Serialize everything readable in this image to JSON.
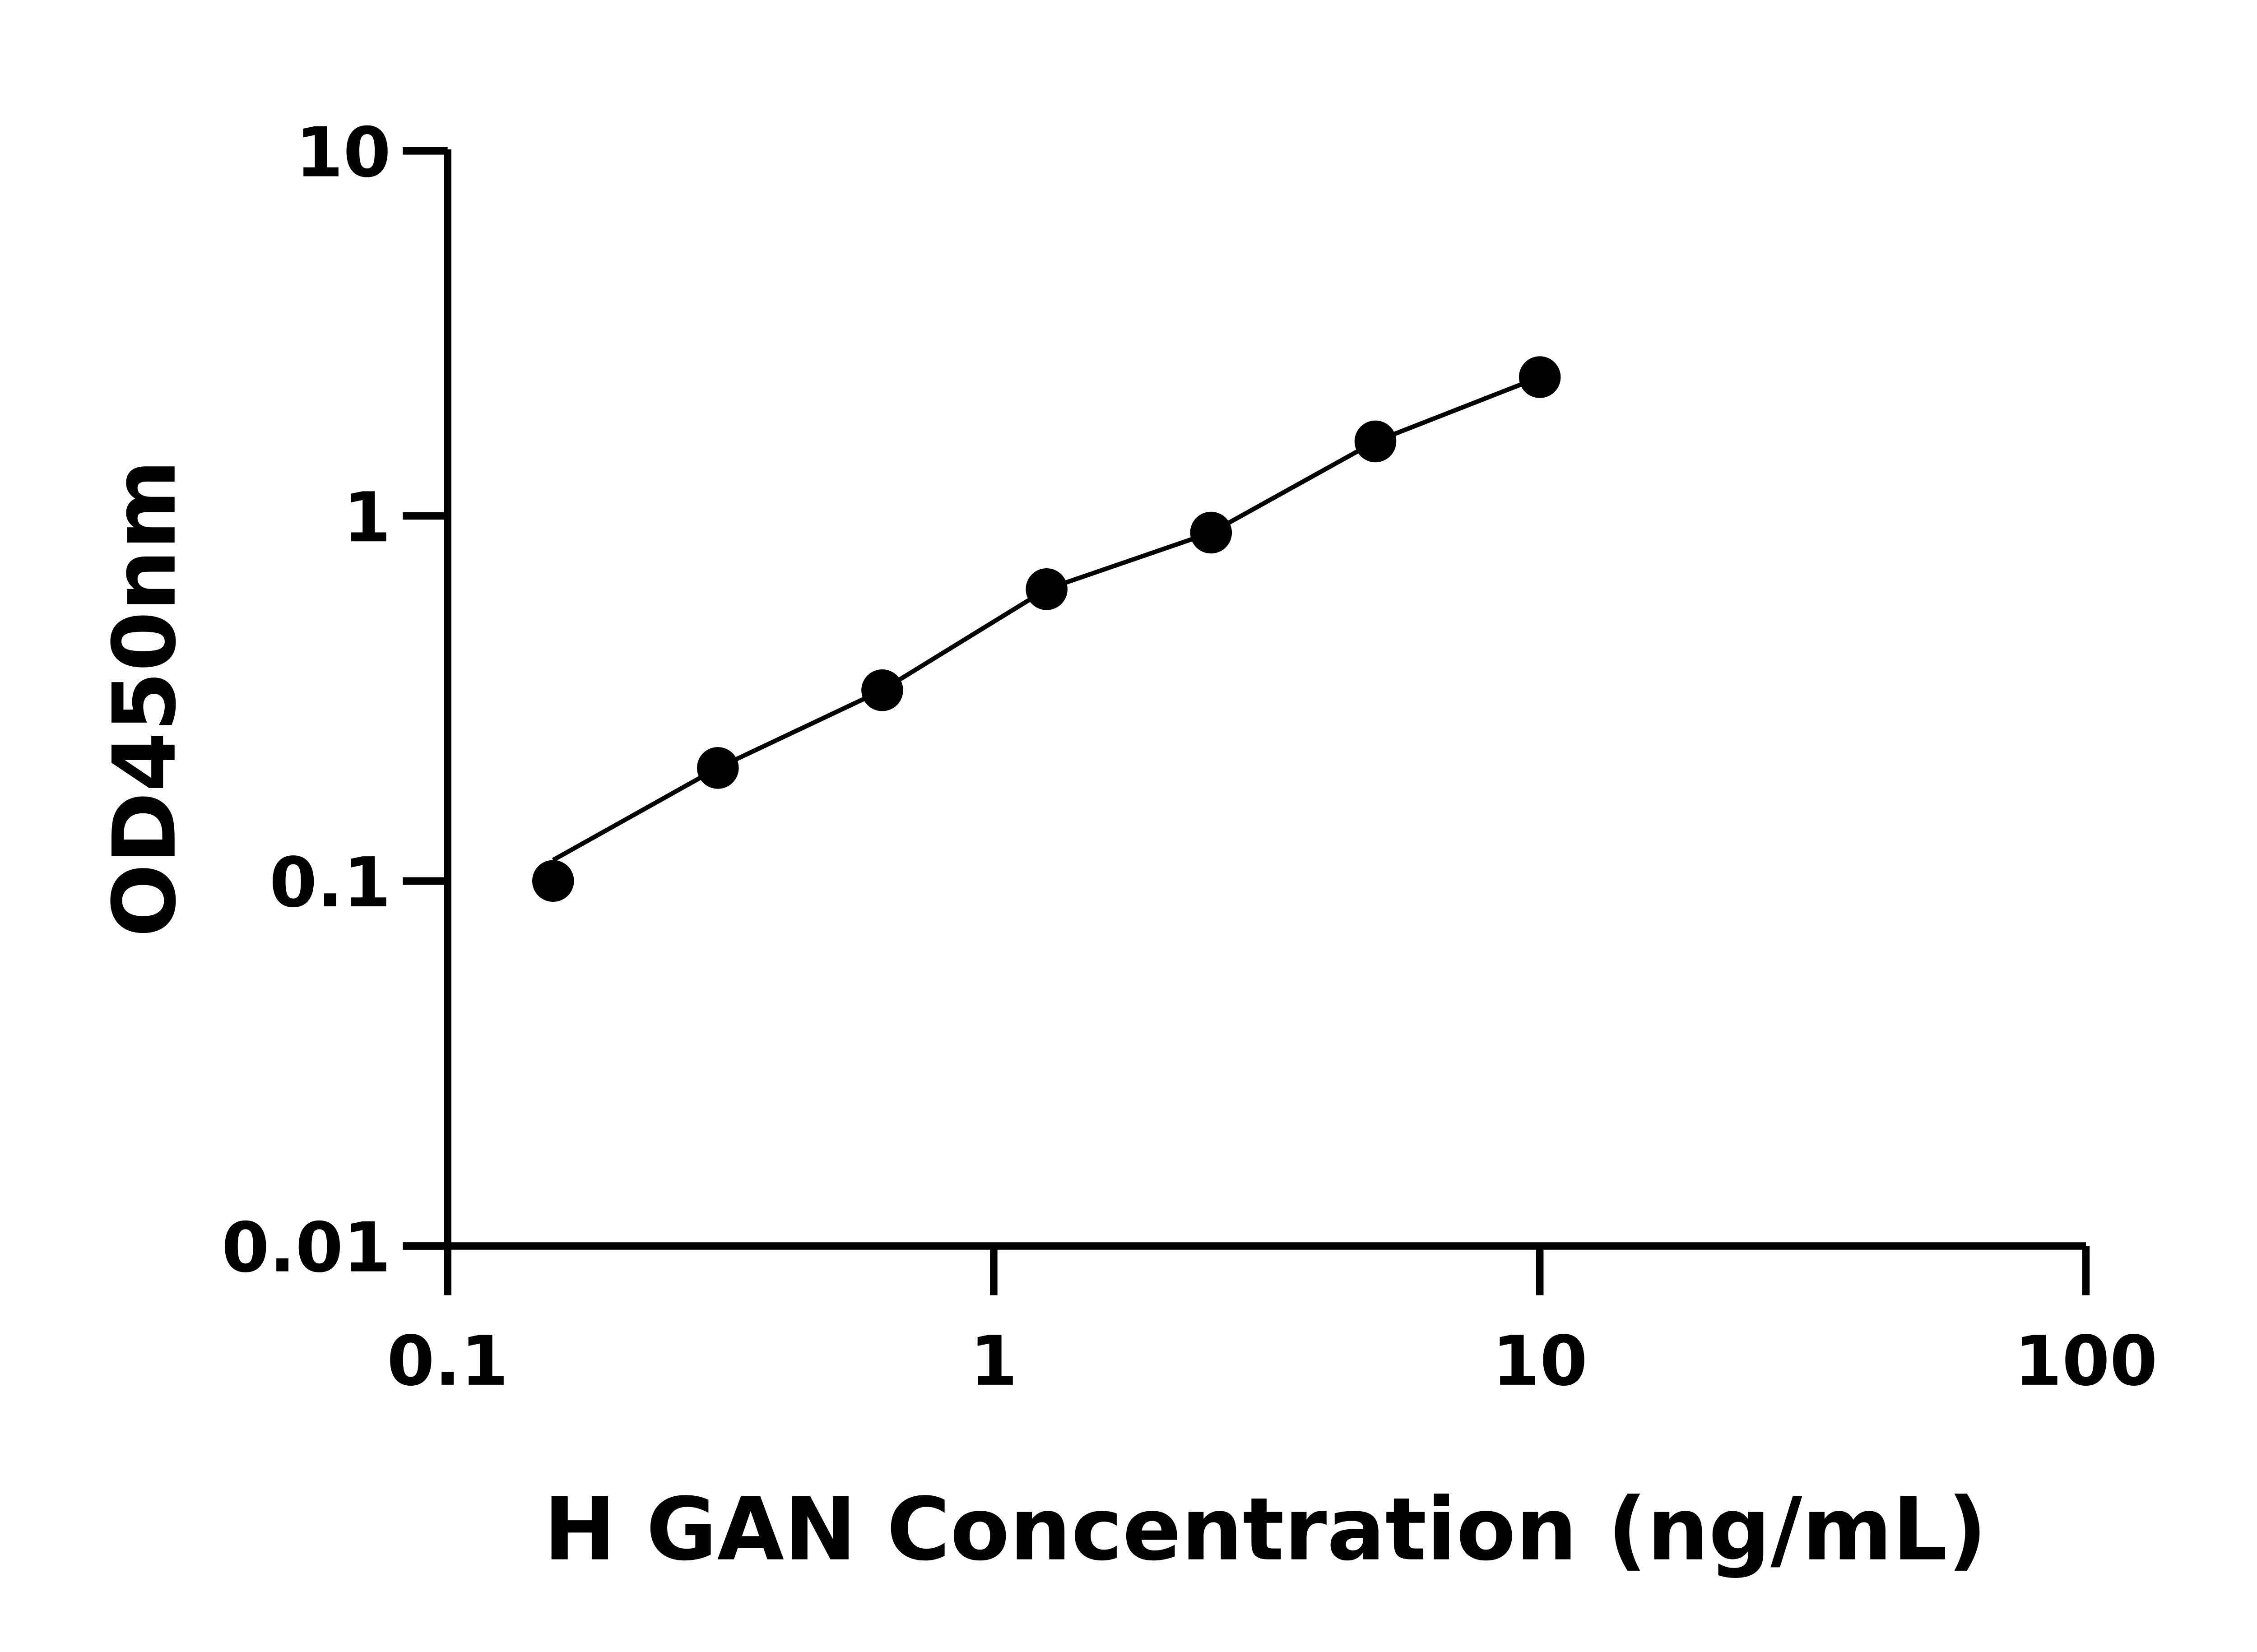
{
  "chart_data": {
    "type": "scatter",
    "title": "",
    "xlabel": "H GAN Concentration (ng/mL)",
    "ylabel": "OD450nm",
    "x_scale": "log",
    "y_scale": "log",
    "xlim": [
      0.1,
      100
    ],
    "ylim": [
      0.01,
      10
    ],
    "x_ticks": [
      "0.1",
      "1",
      "10",
      "100"
    ],
    "y_ticks": [
      "0.01",
      "0.1",
      "1",
      "10"
    ],
    "x_tick_values": [
      0.1,
      1,
      10,
      100
    ],
    "y_tick_values": [
      0.01,
      0.1,
      1,
      10
    ],
    "grid": false,
    "fit_line": true,
    "series": [
      {
        "x": [
          0.156,
          0.3125,
          0.625,
          1.25,
          2.5,
          5,
          10
        ],
        "y": [
          0.1,
          0.204,
          0.333,
          0.63,
          0.9,
          1.6,
          2.4
        ]
      }
    ],
    "colors": {
      "marker": "#000000",
      "line": "#000000",
      "axis": "#000000"
    }
  }
}
